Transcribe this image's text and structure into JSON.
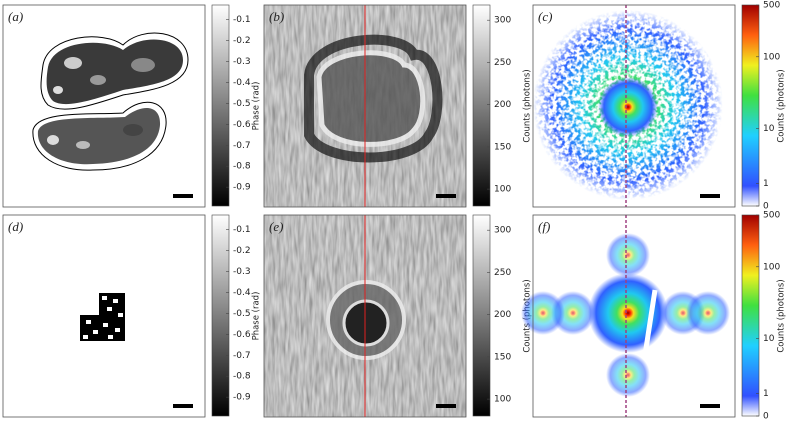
{
  "panels": [
    {
      "label": "(a)",
      "colorbar": {
        "label": "Phase (rad)",
        "scale": "linear",
        "lim": [
          -0.99,
          -0.03
        ],
        "ticks": [
          -0.1,
          -0.2,
          -0.3,
          -0.4,
          -0.5,
          -0.6,
          -0.7,
          -0.8,
          -0.9
        ],
        "colormap": "gray"
      }
    },
    {
      "label": "(b)",
      "colorbar": {
        "label": "Counts (photons)",
        "scale": "linear",
        "lim": [
          80,
          318
        ],
        "ticks": [
          100,
          150,
          200,
          250,
          300
        ],
        "colormap": "gray"
      }
    },
    {
      "label": "(c)",
      "colorbar": {
        "label": "Counts (photons)",
        "scale": "log1p",
        "lim": [
          0,
          500
        ],
        "ticks": [
          0,
          1,
          10,
          100,
          500
        ],
        "colormap": "jet"
      }
    },
    {
      "label": "(d)",
      "colorbar": {
        "label": "Phase (rad)",
        "scale": "linear",
        "lim": [
          -0.99,
          -0.03
        ],
        "ticks": [
          -0.1,
          -0.2,
          -0.3,
          -0.4,
          -0.5,
          -0.6,
          -0.7,
          -0.8,
          -0.9
        ],
        "colormap": "gray"
      }
    },
    {
      "label": "(e)",
      "colorbar": {
        "label": "Counts (photons)",
        "scale": "linear",
        "lim": [
          80,
          318
        ],
        "ticks": [
          100,
          150,
          200,
          250,
          300
        ],
        "colormap": "gray"
      }
    },
    {
      "label": "(f)",
      "colorbar": {
        "label": "Counts (photons)",
        "scale": "log1p",
        "lim": [
          0,
          500
        ],
        "ticks": [
          0,
          1,
          10,
          100,
          500
        ],
        "colormap": "jet"
      }
    }
  ]
}
